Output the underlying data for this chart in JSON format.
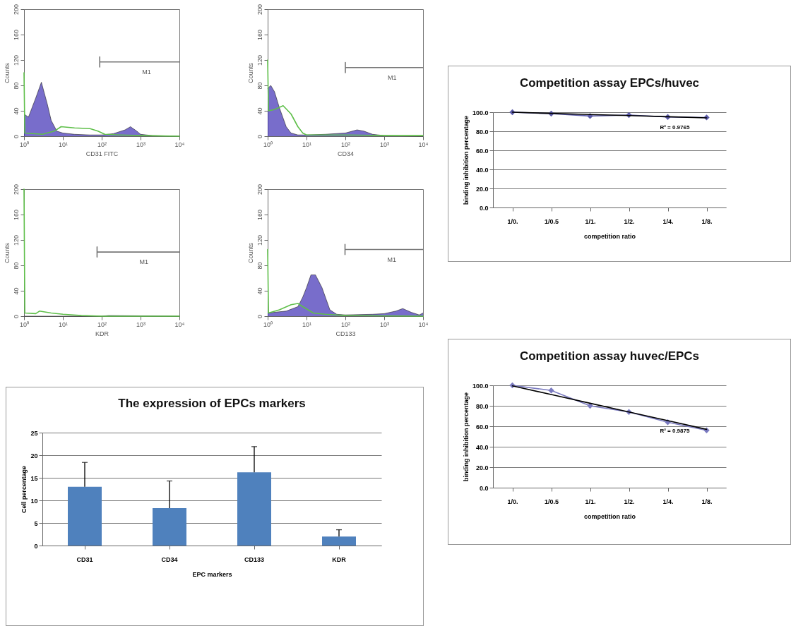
{
  "chart_data": [
    {
      "type": "area",
      "xlabel": "CD31 FITC",
      "ylabel": "Counts",
      "log": "x",
      "xlim": [
        1,
        10000
      ],
      "xticks": [
        {
          "value": 1,
          "label": "10⁰"
        },
        {
          "value": 10,
          "label": "10¹"
        },
        {
          "value": 100,
          "label": "10²"
        },
        {
          "value": 1000,
          "label": "10³"
        },
        {
          "value": 10000,
          "label": "10⁴"
        }
      ],
      "ylim": [
        0,
        200
      ],
      "yticks": [
        0,
        40,
        80,
        120,
        160,
        200
      ],
      "series": [
        {
          "type": "line",
          "name": "M1",
          "color": "#777777",
          "x": [
            89,
            89,
            89,
            10000
          ],
          "values": [
            125,
            109,
            117,
            117
          ]
        },
        {
          "type": "area",
          "color": "#3f2fb5",
          "x": [
            1,
            1.3,
            2,
            2.8,
            4,
            5,
            7,
            10,
            20,
            50,
            100,
            200,
            400,
            550,
            800,
            1000,
            2000,
            10000
          ],
          "values": [
            35,
            30,
            60,
            85,
            50,
            25,
            8,
            5,
            3,
            2,
            2,
            4,
            10,
            15,
            8,
            3,
            1,
            0
          ]
        },
        {
          "type": "line",
          "color": "#5fbf4a",
          "x": [
            1,
            1.05,
            3,
            6,
            9,
            20,
            50,
            80,
            120,
            300,
            1000,
            10000
          ],
          "values": [
            100,
            5,
            3,
            8,
            15,
            13,
            12,
            8,
            3,
            2,
            1,
            0
          ]
        }
      ]
    },
    {
      "type": "area",
      "xlabel": "CD34",
      "ylabel": "Counts",
      "log": "x",
      "xlim": [
        1,
        10000
      ],
      "xticks": [
        {
          "value": 1,
          "label": "10⁰"
        },
        {
          "value": 10,
          "label": "10¹"
        },
        {
          "value": 100,
          "label": "10²"
        },
        {
          "value": 1000,
          "label": "10³"
        },
        {
          "value": 10000,
          "label": "10⁴"
        }
      ],
      "ylim": [
        0,
        200
      ],
      "yticks": [
        0,
        40,
        80,
        120,
        160,
        200
      ],
      "series": [
        {
          "type": "line",
          "name": "M1",
          "color": "#777777",
          "x": [
            100,
            100,
            100,
            10000
          ],
          "values": [
            116,
            100,
            108,
            108
          ]
        },
        {
          "type": "area",
          "color": "#3f2fb5",
          "x": [
            1,
            1.2,
            1.5,
            2,
            3,
            4,
            6,
            10,
            30,
            100,
            200,
            300,
            500,
            1000,
            10000
          ],
          "values": [
            75,
            80,
            70,
            45,
            15,
            5,
            2,
            2,
            3,
            5,
            10,
            8,
            3,
            1,
            0
          ]
        },
        {
          "type": "line",
          "color": "#5fbf4a",
          "x": [
            1,
            1.05,
            1.5,
            2.5,
            4,
            6,
            8,
            10,
            100,
            1000,
            10000
          ],
          "values": [
            120,
            40,
            42,
            48,
            35,
            15,
            5,
            2,
            2,
            1,
            1
          ]
        }
      ]
    },
    {
      "type": "area",
      "xlabel": "KDR",
      "ylabel": "Counts",
      "log": "x",
      "xlim": [
        1,
        10000
      ],
      "xticks": [
        {
          "value": 1,
          "label": "10⁰"
        },
        {
          "value": 10,
          "label": "10¹"
        },
        {
          "value": 100,
          "label": "10²"
        },
        {
          "value": 1000,
          "label": "10³"
        },
        {
          "value": 10000,
          "label": "10⁴"
        }
      ],
      "ylim": [
        0,
        200
      ],
      "yticks": [
        0,
        40,
        80,
        120,
        160,
        200
      ],
      "series": [
        {
          "type": "line",
          "name": "M1",
          "color": "#777777",
          "x": [
            76,
            76,
            76,
            10000
          ],
          "values": [
            109,
            93,
            101,
            101
          ]
        },
        {
          "type": "area",
          "color": "#3f2fb5",
          "x": [
            1,
            100,
            150,
            10000
          ],
          "values": [
            0,
            0,
            1,
            0
          ]
        },
        {
          "type": "line",
          "color": "#5fbf4a",
          "x": [
            1,
            1.05,
            2,
            2.5,
            5,
            10,
            30,
            100,
            10000
          ],
          "values": [
            200,
            5,
            4,
            8,
            5,
            3,
            1,
            0,
            0
          ]
        }
      ]
    },
    {
      "type": "area",
      "xlabel": "CD133",
      "ylabel": "Counts",
      "log": "x",
      "xlim": [
        1,
        10000
      ],
      "xticks": [
        {
          "value": 1,
          "label": "10⁰"
        },
        {
          "value": 10,
          "label": "10¹"
        },
        {
          "value": 100,
          "label": "10²"
        },
        {
          "value": 1000,
          "label": "10³"
        },
        {
          "value": 10000,
          "label": "10⁴"
        }
      ],
      "ylim": [
        0,
        200
      ],
      "yticks": [
        0,
        40,
        80,
        120,
        160,
        200
      ],
      "series": [
        {
          "type": "line",
          "name": "M1",
          "color": "#777777",
          "x": [
            98,
            98,
            98,
            10000
          ],
          "values": [
            113,
            97,
            105,
            105
          ]
        },
        {
          "type": "area",
          "color": "#3f2fb5",
          "x": [
            1,
            3,
            6,
            8,
            10,
            13,
            17,
            25,
            40,
            60,
            100,
            500,
            1000,
            2000,
            3000,
            5000,
            8000,
            10000
          ],
          "values": [
            5,
            8,
            15,
            30,
            45,
            65,
            65,
            45,
            10,
            3,
            2,
            3,
            4,
            8,
            12,
            6,
            2,
            5
          ]
        },
        {
          "type": "line",
          "color": "#5fbf4a",
          "x": [
            1,
            1.05,
            2,
            4,
            6,
            8,
            15,
            30,
            100,
            10000
          ],
          "values": [
            105,
            5,
            10,
            18,
            20,
            15,
            5,
            3,
            1,
            0
          ]
        }
      ]
    },
    {
      "type": "bar",
      "title": "The expression of EPCs markers",
      "xlabel": "EPC markers",
      "ylabel": "Cell percentage",
      "categories": [
        "CD31",
        "CD34",
        "CD133",
        "KDR"
      ],
      "values": [
        13,
        8.3,
        16.2,
        2
      ],
      "color": "#4f81bd",
      "errors": [
        [
          13,
          18.4
        ],
        [
          8.3,
          14.3
        ],
        [
          16.2,
          21.9
        ],
        [
          2,
          3.5
        ]
      ],
      "ylim": [
        0,
        25
      ],
      "yticks": [
        0,
        5,
        10,
        15,
        20,
        25
      ],
      "grid": "y"
    },
    {
      "type": "line",
      "title": "Competition assay  EPCs/huvec",
      "xlabel": "competition ratio",
      "ylabel": "binding inhibition percentage",
      "categories": [
        "1/0.",
        "1/0.5",
        "1/1.",
        "1/2.",
        "1/4.",
        "1/8."
      ],
      "ylim": [
        0,
        100
      ],
      "yticks": [
        {
          "value": 0,
          "label": "0.0"
        },
        {
          "value": 20,
          "label": "20.0"
        },
        {
          "value": 40,
          "label": "40.0"
        },
        {
          "value": 60,
          "label": "60.0"
        },
        {
          "value": 80,
          "label": "80.0"
        },
        {
          "value": 100,
          "label": "100.0"
        }
      ],
      "grid": "y",
      "annotations": [
        "R² = 0.9765"
      ],
      "series": [
        {
          "type": "line",
          "color": "#5b5ba8",
          "marker": "diamond",
          "values": [
            100,
            98.5,
            96,
            97,
            95,
            94.5
          ]
        },
        {
          "type": "line",
          "color": "#000000",
          "values": [
            100,
            98.8,
            97.6,
            96.5,
            95.3,
            94.1
          ]
        }
      ]
    },
    {
      "type": "line",
      "title": "Competition assay  huvec/EPCs",
      "xlabel": "competition ratio",
      "ylabel": "binding inhibition percentage",
      "categories": [
        "1/0.",
        "1/0.5",
        "1/1.",
        "1/2.",
        "1/4.",
        "1/8."
      ],
      "ylim": [
        0,
        100
      ],
      "yticks": [
        {
          "value": 0,
          "label": "0.0"
        },
        {
          "value": 20,
          "label": "20.0"
        },
        {
          "value": 40,
          "label": "40.0"
        },
        {
          "value": 60,
          "label": "60.0"
        },
        {
          "value": 80,
          "label": "80.0"
        },
        {
          "value": 100,
          "label": "100.0"
        }
      ],
      "grid": "y",
      "annotations": [
        "R² = 0.9875"
      ],
      "series": [
        {
          "type": "line",
          "color": "#7a7ac0",
          "marker": "diamond",
          "values": [
            100,
            95,
            80,
            74,
            64,
            56
          ]
        },
        {
          "type": "line",
          "color": "#000000",
          "values": [
            99.5,
            91,
            82.5,
            74,
            65.5,
            57
          ]
        }
      ]
    }
  ]
}
